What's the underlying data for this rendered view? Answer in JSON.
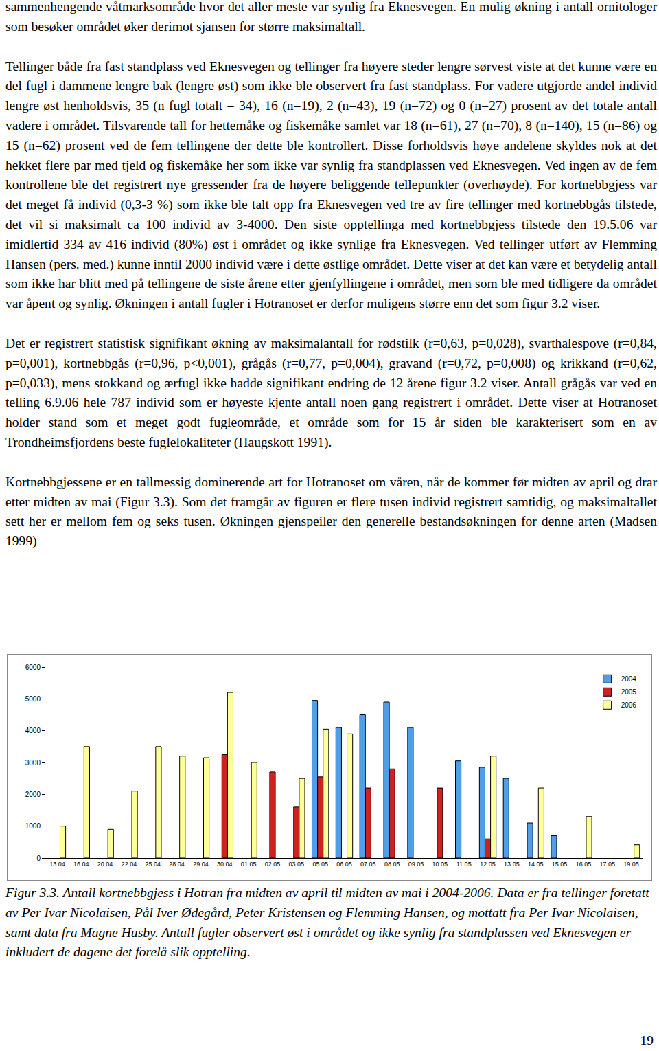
{
  "paragraphs": [
    "sammenhengende våtmarksområde hvor det aller meste var synlig fra Eknesvegen. En mulig økning i antall ornitologer som besøker området øker derimot sjansen for større maksimaltall.",
    "Tellinger både fra fast standplass ved Eknesvegen og tellinger fra høyere steder lengre sørvest viste at det kunne være en del fugl i dammene lengre bak (lengre øst) som ikke ble observert fra fast standplass. For vadere utgjorde andel individ lengre øst henholdsvis, 35 (n fugl totalt = 34), 16 (n=19), 2 (n=43), 19 (n=72) og 0 (n=27) prosent av det totale antall vadere i området. Tilsvarende tall for hettemåke og fiskemåke samlet var 18 (n=61), 27 (n=70), 8 (n=140), 15 (n=86) og 15 (n=62) prosent ved de fem tellingene der dette ble kontrollert. Disse forholdsvis høye andelene skyldes nok at det hekket flere par med tjeld og fiskemåke her som ikke var synlig fra standplassen ved Eknesvegen. Ved ingen av de fem kontrollene ble det registrert nye gressender fra de høyere beliggende tellepunkter (overhøyde). For kortnebbgjess var det meget få individ (0,3-3 %) som ikke ble talt opp fra Eknesvegen ved tre av fire tellinger med kortnebbgås tilstede, det vil si maksimalt ca 100 individ av 3-4000. Den siste opptellinga med kortnebbgjess tilstede den 19.5.06 var imidlertid 334 av 416 individ (80%) øst i området og ikke synlige fra Eknesvegen. Ved tellinger utført av Flemming Hansen (pers. med.) kunne inntil 2000 individ være i dette østlige området. Dette viser at det kan være et betydelig antall som ikke har blitt med på tellingene de siste årene etter gjenfyllingene i området, men som ble med tidligere da området var åpent og synlig. Økningen i antall fugler i Hotranoset er derfor muligens større enn det som figur 3.2 viser.",
    "Det er registrert statistisk signifikant økning av maksimalantall for rødstilk (r=0,63, p=0,028), svarthalespove (r=0,84, p=0,001), kortnebbgås (r=0,96, p<0,001), grågås (r=0,77, p=0,004), gravand (r=0,72, p=0,008) og krikkand (r=0,62, p=0,033), mens stokkand og ærfugl ikke hadde signifikant endring de 12 årene figur 3.2 viser. Antall grågås var ved en telling 6.9.06 hele 787 individ som er høyeste kjente antall noen gang registrert i området. Dette viser at Hotranoset holder stand som et meget godt fugleområde, et område som for 15 år siden ble karakterisert som en av Trondheimsfjordens beste fuglelokaliteter (Haugskott 1991).",
    "Kortnebbgjessene er en tallmessig dominerende art for Hotranoset om våren, når de kommer før midten av april og drar etter midten av mai (Figur 3.3). Som det framgår av figuren er flere tusen individ registrert samtidig, og maksimaltallet sett her er mellom fem og seks tusen. Økningen gjenspeiler den generelle bestandsøkningen for denne arten (Madsen 1999)"
  ],
  "chart_data": {
    "type": "bar",
    "categories": [
      "13.04",
      "16.04",
      "20.04",
      "22.04",
      "25.04",
      "28.04",
      "29.04",
      "30.04",
      "01.05",
      "02.05",
      "03.05",
      "05.05",
      "06.05",
      "07.05",
      "08.05",
      "09.05",
      "10.05",
      "11.05",
      "12.05",
      "13.05",
      "14.05",
      "15.05",
      "16.05",
      "17.05",
      "19.05"
    ],
    "series": [
      {
        "name": "2004",
        "color": "#4f9ee8",
        "values": [
          null,
          null,
          null,
          null,
          null,
          null,
          null,
          null,
          null,
          null,
          null,
          4950,
          4100,
          4500,
          4900,
          4100,
          null,
          3050,
          2850,
          2500,
          1100,
          700,
          null,
          null,
          null
        ]
      },
      {
        "name": "2005",
        "color": "#cc2222",
        "values": [
          null,
          null,
          null,
          null,
          null,
          null,
          null,
          3250,
          null,
          2700,
          1600,
          2550,
          null,
          2200,
          2800,
          null,
          2200,
          null,
          600,
          null,
          null,
          null,
          null,
          null,
          null
        ]
      },
      {
        "name": "2006",
        "color": "#ffff99",
        "values": [
          1000,
          3500,
          900,
          2100,
          3500,
          3200,
          3150,
          5200,
          3000,
          null,
          2500,
          4050,
          3900,
          null,
          null,
          null,
          null,
          null,
          3200,
          null,
          2200,
          null,
          1300,
          null,
          416
        ]
      }
    ],
    "ylim": [
      0,
      6000
    ],
    "yticks": [
      0,
      1000,
      2000,
      3000,
      4000,
      5000,
      6000
    ],
    "legend": "top right",
    "grid": false
  },
  "caption": "Figur 3.3. Antall kortnebbgjess i Hotran fra midten av april til midten av mai i 2004-2006. Data er fra tellinger foretatt av Per Ivar Nicolaisen, Pål Iver Ødegård, Peter Kristensen og Flemming Hansen, og mottatt fra Per Ivar Nicolaisen, samt data fra Magne Husby. Antall fugler observert øst i området og ikke synlig fra standplassen ved Eknesvegen er inkludert de dagene det forelå slik opptelling.",
  "page_number": "19"
}
